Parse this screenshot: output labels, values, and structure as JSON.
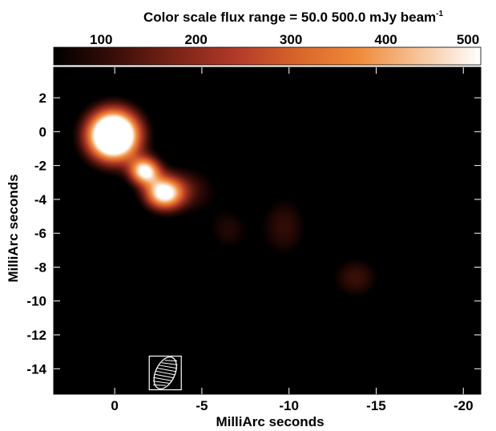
{
  "chart_data": {
    "type": "heatmap",
    "title_main": "Color scale flux range = 50.0  500.0 mJy beam",
    "title_sup": "-1",
    "colorbar": {
      "min": 50.0,
      "max": 500.0,
      "ticks": [
        100,
        200,
        300,
        400,
        500
      ],
      "tick_labels": [
        "100",
        "200",
        "300",
        "400",
        "500"
      ]
    },
    "xlabel": "MilliArc seconds",
    "ylabel": "MilliArc seconds",
    "xlim": [
      3.5,
      -21.0
    ],
    "ylim": [
      -15.5,
      3.8
    ],
    "xticks": [
      0,
      -5,
      -10,
      -15,
      -20
    ],
    "xtick_labels": [
      "0",
      "-5",
      "-10",
      "-15",
      "-20"
    ],
    "yticks": [
      2,
      0,
      -2,
      -4,
      -6,
      -8,
      -10,
      -12,
      -14
    ],
    "ytick_labels": [
      "2",
      "0",
      "-2",
      "-4",
      "-6",
      "-8",
      "-10",
      "-12",
      "-14"
    ],
    "colormap": [
      "#000000",
      "#3a0e08",
      "#7a2416",
      "#b33a2a",
      "#d9652a",
      "#f08a3a",
      "#f7c59a",
      "#ffffff"
    ],
    "components": [
      {
        "x": 0.1,
        "y": -0.2,
        "peak": 900,
        "sx": 1.0,
        "sy": 1.0
      },
      {
        "x": -1.7,
        "y": -2.3,
        "peak": 500,
        "sx": 0.6,
        "sy": 0.55
      },
      {
        "x": -2.8,
        "y": -3.6,
        "peak": 520,
        "sx": 0.75,
        "sy": 0.65
      },
      {
        "x": -4.2,
        "y": -3.4,
        "peak": 110,
        "sx": 1.2,
        "sy": 1.0
      },
      {
        "x": -6.5,
        "y": -5.8,
        "peak": 85,
        "sx": 0.9,
        "sy": 1.0
      },
      {
        "x": -9.7,
        "y": -5.6,
        "peak": 105,
        "sx": 1.0,
        "sy": 1.4
      },
      {
        "x": -13.8,
        "y": -8.6,
        "peak": 115,
        "sx": 1.0,
        "sy": 0.9
      }
    ],
    "beam": {
      "x": -2.9,
      "y": -14.2,
      "major": 1.0,
      "minor": 0.55,
      "pa_deg": 25
    }
  }
}
